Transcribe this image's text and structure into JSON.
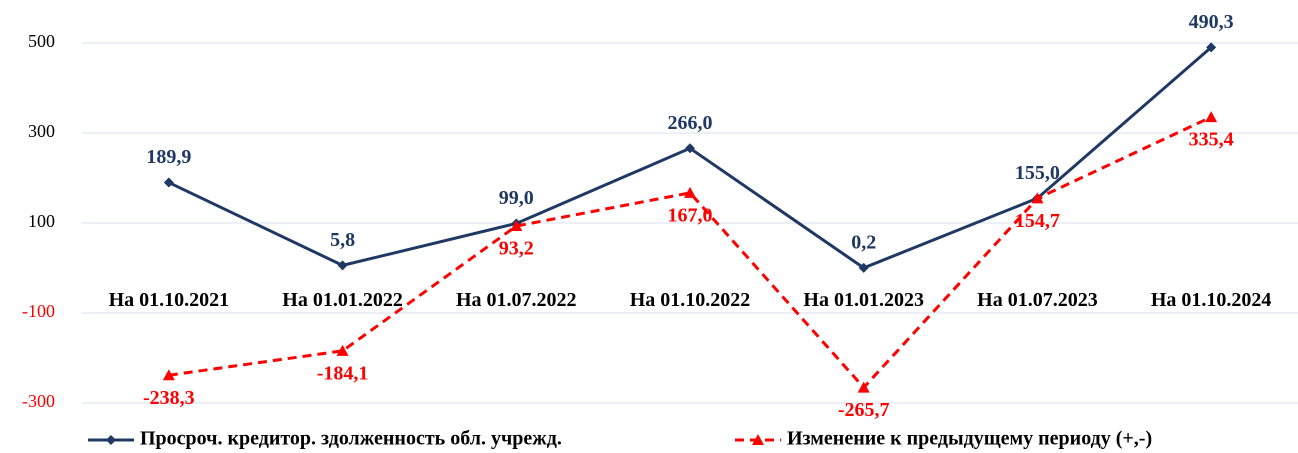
{
  "chart_data": {
    "type": "line",
    "categories": [
      "На 01.10.2021",
      "На 01.01.2022",
      "На 01.07.2022",
      "На 01.10.2022",
      "На 01.01.2023",
      "На 01.07.2023",
      "На 01.10.2024"
    ],
    "series": [
      {
        "name": "Просроч. кредитор. здолженность обл. учрежд.",
        "color": "#1f3864",
        "marker": "diamond",
        "dashed": false,
        "values": [
          189.9,
          5.8,
          99.0,
          266.0,
          0.2,
          155.0,
          490.3
        ],
        "value_labels": [
          "189,9",
          "5,8",
          "99,0",
          "266,0",
          "0,2",
          "155,0",
          "490,3"
        ]
      },
      {
        "name": "Изменение к предыдущему периоду (+,-)",
        "color": "#ff0000",
        "marker": "triangle",
        "dashed": true,
        "values": [
          -238.3,
          -184.1,
          93.2,
          167.0,
          -265.7,
          154.7,
          335.4
        ],
        "value_labels": [
          "-238,3",
          "-184,1",
          "93,2",
          "167,0",
          "-265,7",
          "154,7",
          "335,4"
        ]
      }
    ],
    "ylim": [
      -300,
      500
    ],
    "yticks": [
      500,
      300,
      100,
      -100,
      -300
    ],
    "grid": true
  }
}
